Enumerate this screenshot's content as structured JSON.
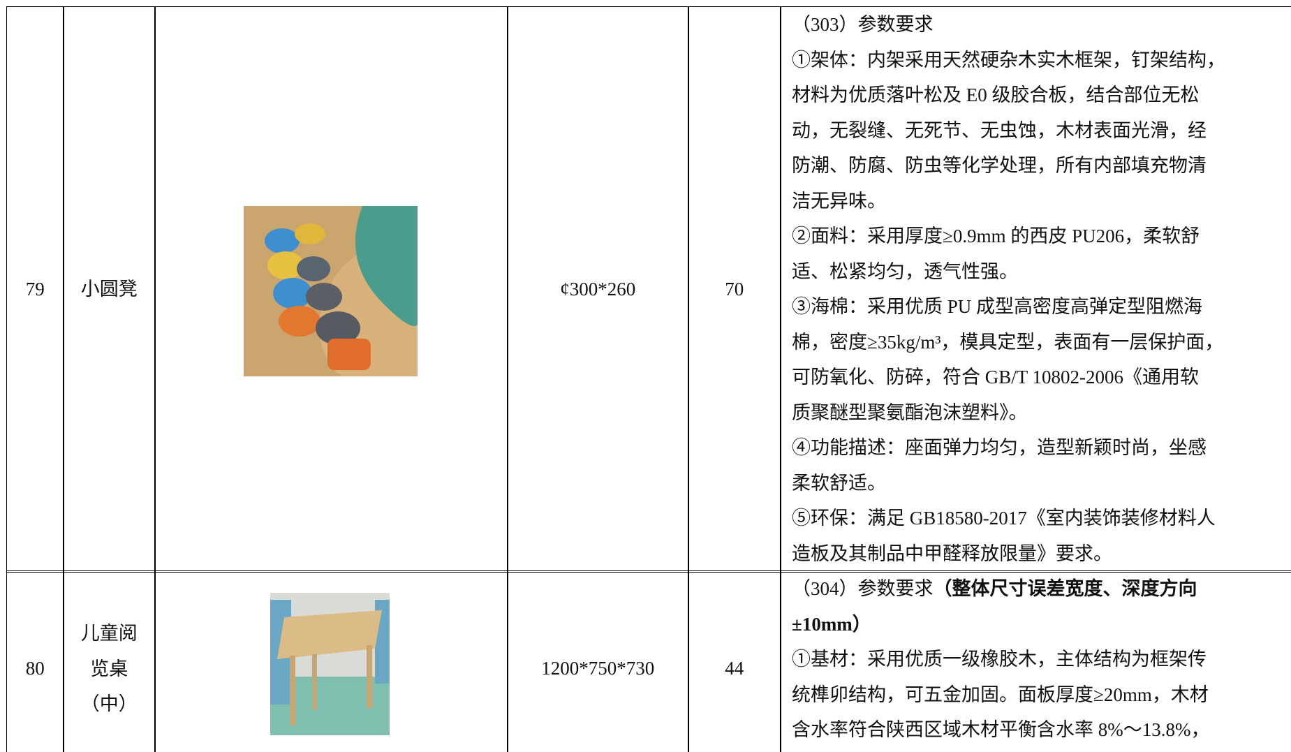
{
  "table": {
    "rows": [
      {
        "no": "79",
        "name": [
          "小圆凳"
        ],
        "size": "¢300*260",
        "quantity": "70",
        "description": [
          [
            "（303）参数要求"
          ],
          [
            "①架体：内架采用天然硬杂木实木框架，钉架结构，"
          ],
          [
            "材料为优质落叶松及 E0 级胶合板，结合部位无松"
          ],
          [
            "动，无裂缝、无死节、无虫蚀，木材表面光滑，经"
          ],
          [
            "防潮、防腐、防虫等化学处理，所有内部填充物清"
          ],
          [
            "洁无异味。"
          ],
          [
            "②面料：采用厚度≥0.9mm 的西皮 PU206，柔软舒"
          ],
          [
            "适、松紧均匀，透气性强。"
          ],
          [
            "③海棉：采用优质 PU 成型高密度高弹定型阻燃海"
          ],
          [
            "棉，密度≥35kg/m³，模具定型，表面有一层保护面，"
          ],
          [
            "可防氧化、防碎，符合 GB/T 10802-2006《通用软"
          ],
          [
            "质聚醚型聚氨酯泡沫塑料》。"
          ],
          [
            "④功能描述：座面弹力均匀，造型新颖时尚，坐感"
          ],
          [
            "柔软舒适。"
          ],
          [
            "⑤环保：满足 GB18580-2017《室内装饰装修材料人"
          ],
          [
            "造板及其制品中甲醛释放限量》要求。"
          ]
        ]
      },
      {
        "no": "80",
        "name": [
          "儿童阅",
          "览桌",
          "（中）"
        ],
        "size": "1200*750*730",
        "quantity": "44",
        "description": [
          [
            "（304）参数要求",
            {
              "text": "（整体尺寸误差宽度、深度方向",
              "bold": true
            }
          ],
          [
            {
              "text": "±10mm）",
              "bold": true
            }
          ],
          [
            "①基材：采用优质一级橡胶木，主体结构为框架传"
          ],
          [
            "统榫卯结构，可五金加固。面板厚度≥20mm，木材"
          ],
          [
            "含水率符合陕西区域木材平衡含水率 8%～13.8%，"
          ]
        ]
      }
    ]
  }
}
